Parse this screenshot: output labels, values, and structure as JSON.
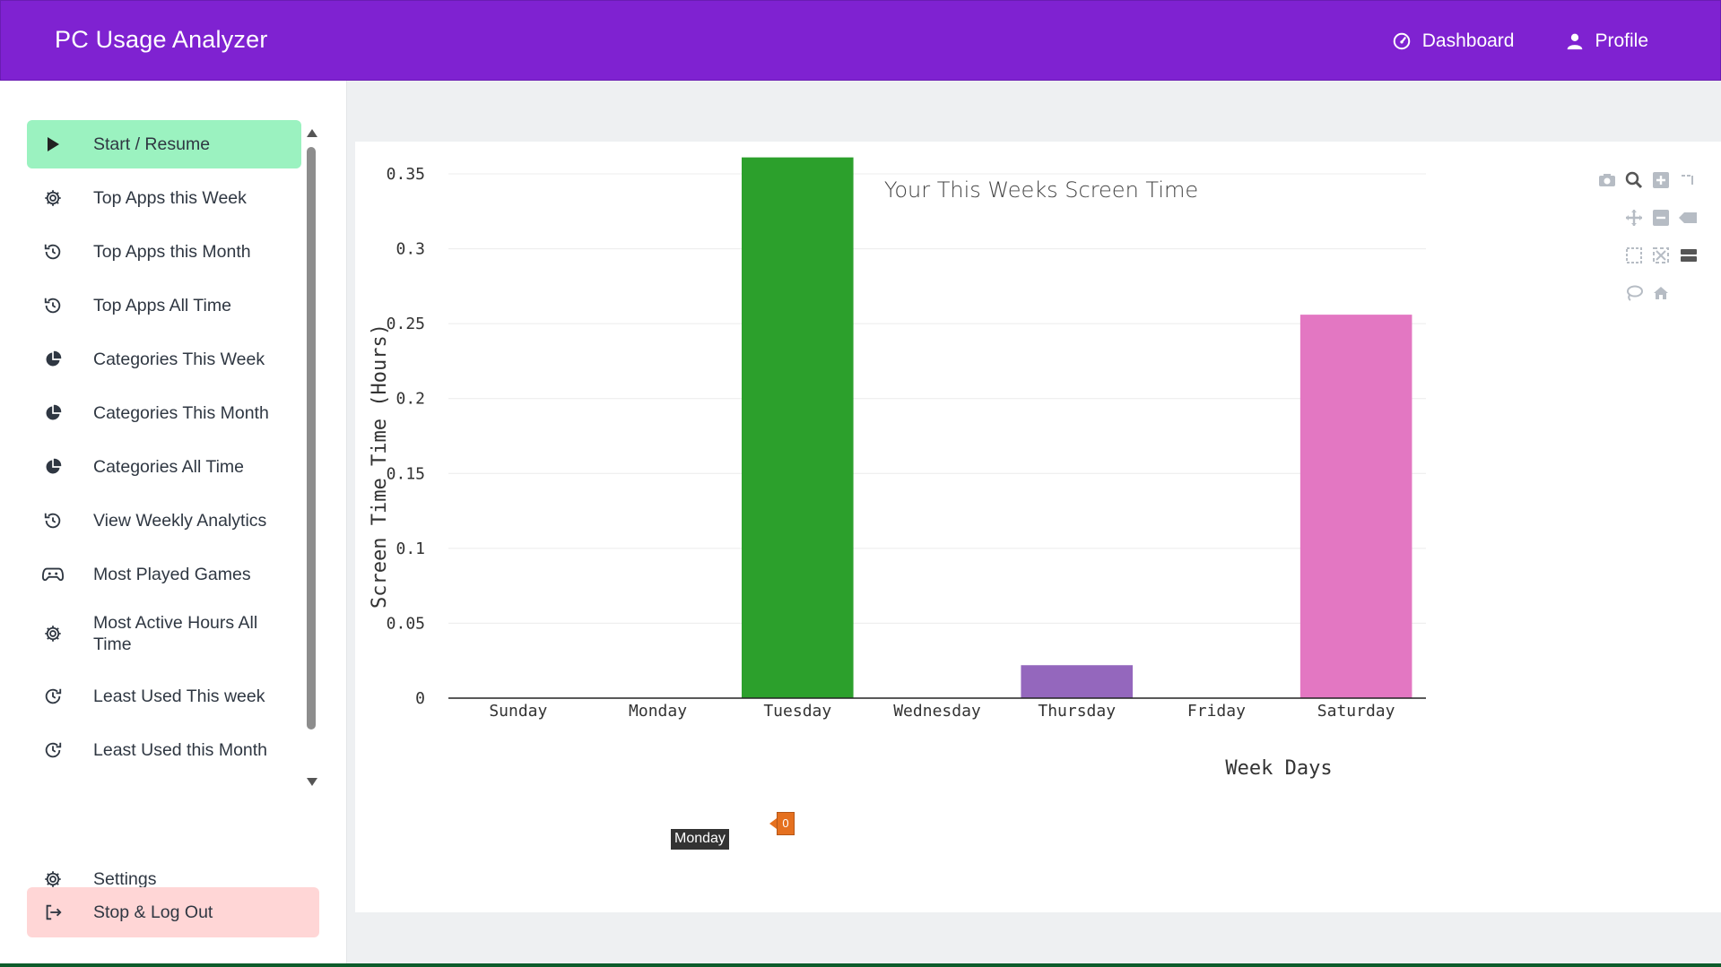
{
  "app": {
    "title": "PC Usage Analyzer"
  },
  "topnav": {
    "items": [
      {
        "label": "Dashboard",
        "icon": "gauge-icon"
      },
      {
        "label": "Profile",
        "icon": "user-icon"
      }
    ]
  },
  "sidebar": {
    "items": [
      {
        "label": "Start / Resume",
        "icon": "play-icon",
        "active": true
      },
      {
        "label": "Top Apps this Week",
        "icon": "gear-icon"
      },
      {
        "label": "Top Apps this Month",
        "icon": "history-icon"
      },
      {
        "label": "Top Apps All Time",
        "icon": "history-icon"
      },
      {
        "label": "Categories This Week",
        "icon": "pie-chart-icon"
      },
      {
        "label": "Categories This Month",
        "icon": "pie-chart-icon"
      },
      {
        "label": "Categories All Time",
        "icon": "pie-chart-icon"
      },
      {
        "label": "View Weekly Analytics",
        "icon": "history-icon"
      },
      {
        "label": "Most Played Games",
        "icon": "gamepad-icon"
      },
      {
        "label": "Most Active Hours All Time",
        "icon": "gear-icon"
      },
      {
        "label": "Least Used This week",
        "icon": "clock-down-icon"
      },
      {
        "label": "Least Used this Month",
        "icon": "clock-down-icon"
      }
    ],
    "settings": {
      "label": "Settings",
      "icon": "gear-icon"
    },
    "logout": {
      "label": "Stop & Log Out",
      "icon": "logout-icon"
    }
  },
  "chart_data": {
    "type": "bar",
    "title": "Your This Weeks Screen Time",
    "xlabel": "Week Days",
    "ylabel": "Screen Time Time (Hours)",
    "categories": [
      "Sunday",
      "Monday",
      "Tuesday",
      "Wednesday",
      "Thursday",
      "Friday",
      "Saturday"
    ],
    "values": [
      0,
      0,
      0.361,
      0,
      0.022,
      0,
      0.256
    ],
    "colors": [
      "#1f77b4",
      "#ff7f0e",
      "#2ca02c",
      "#d62728",
      "#9467bd",
      "#8c564b",
      "#e377c2"
    ],
    "ylim": [
      0,
      0.36
    ],
    "yticks": [
      0,
      0.05,
      0.1,
      0.15,
      0.2,
      0.25,
      0.3,
      0.35
    ],
    "ytick_labels": [
      "0",
      "0.05",
      "0.1",
      "0.15",
      "0.2",
      "0.25",
      "0.3",
      "0.35"
    ],
    "grid": true,
    "hover": {
      "category": "Monday",
      "value_label": "0"
    }
  },
  "colors": {
    "header": "#7f22d1",
    "active_item": "#9bf2c0",
    "logout_item": "#ffd6d6"
  }
}
